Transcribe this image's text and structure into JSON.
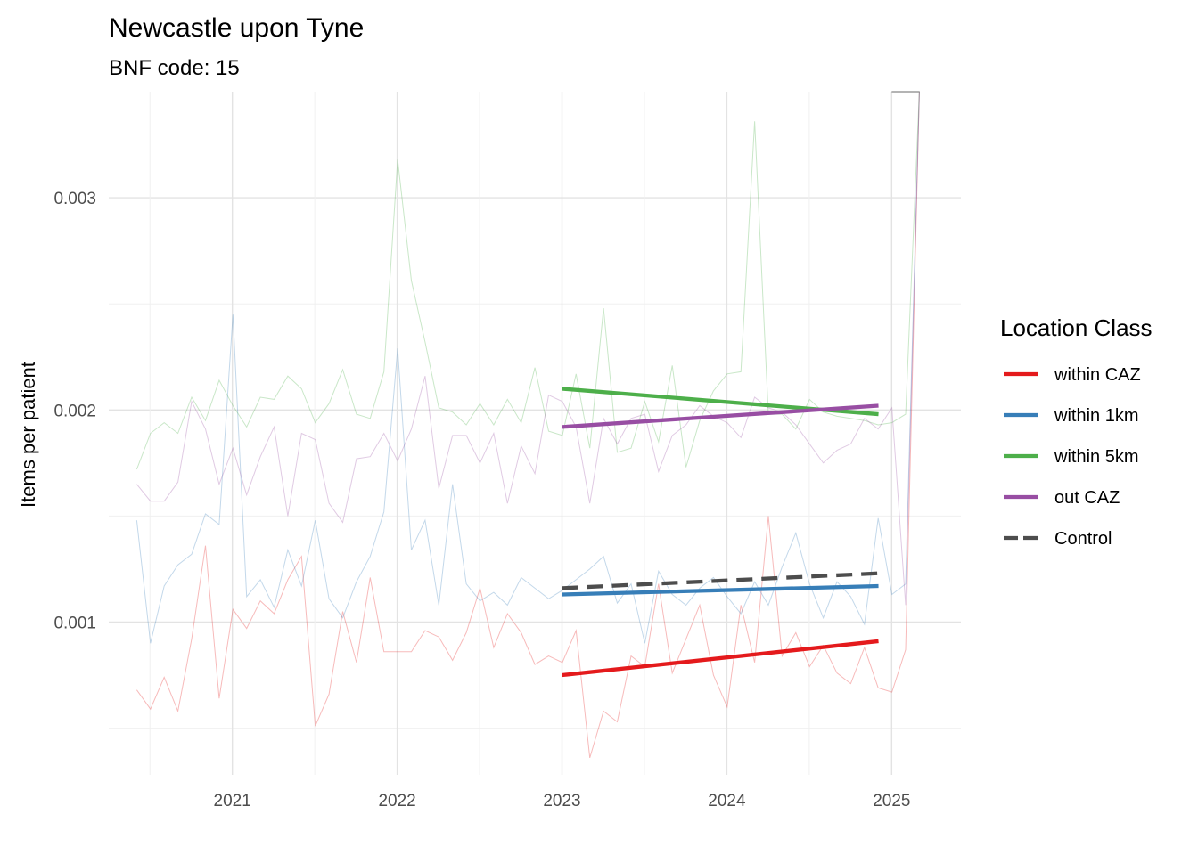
{
  "chart_data": {
    "type": "line",
    "title": "Newcastle upon Tyne",
    "subtitle": "BNF code: 15",
    "xlabel": "",
    "ylabel": "Items per patient",
    "x_ticks": [
      "2021",
      "2022",
      "2023",
      "2024",
      "2025"
    ],
    "x_tick_values": [
      2021,
      2022,
      2023,
      2024,
      2025
    ],
    "y_ticks": [
      "0.001",
      "0.002",
      "0.003"
    ],
    "y_tick_values": [
      0.001,
      0.002,
      0.003
    ],
    "xlim": [
      2020.25,
      2025.42
    ],
    "ylim": [
      0.00028,
      0.0035
    ],
    "grid": true,
    "legend": {
      "title": "Location Class",
      "position": "right",
      "entries": [
        {
          "label": "within CAZ",
          "color": "#e41a1c",
          "dashed": false
        },
        {
          "label": "within 1km",
          "color": "#377eb8",
          "dashed": false
        },
        {
          "label": "within 5km",
          "color": "#4daf4a",
          "dashed": false
        },
        {
          "label": "out CAZ",
          "color": "#984ea3",
          "dashed": false
        },
        {
          "label": "Control",
          "color": "#4d4d4d",
          "dashed": true
        }
      ]
    },
    "trend_lines": [
      {
        "name": "within CAZ",
        "color": "#e41a1c",
        "dashed": false,
        "x": [
          2023.0,
          2024.92
        ],
        "y": [
          0.00075,
          0.00091
        ]
      },
      {
        "name": "within 1km",
        "color": "#377eb8",
        "dashed": false,
        "x": [
          2023.0,
          2024.92
        ],
        "y": [
          0.00113,
          0.00117
        ]
      },
      {
        "name": "within 5km",
        "color": "#4daf4a",
        "dashed": false,
        "x": [
          2023.0,
          2024.92
        ],
        "y": [
          0.0021,
          0.00198
        ]
      },
      {
        "name": "out CAZ",
        "color": "#984ea3",
        "dashed": false,
        "x": [
          2023.0,
          2024.92
        ],
        "y": [
          0.00192,
          0.00202
        ]
      },
      {
        "name": "Control",
        "color": "#4d4d4d",
        "dashed": true,
        "x": [
          2023.0,
          2024.92
        ],
        "y": [
          0.00116,
          0.00123
        ]
      }
    ],
    "monthly_start": 2020.42,
    "monthly_step": 0.0833,
    "monthly_series": [
      {
        "name": "within CAZ",
        "color": "#e41a1c",
        "values": [
          0.00068,
          0.00059,
          0.00074,
          0.00058,
          0.00092,
          0.00136,
          0.00064,
          0.00106,
          0.00097,
          0.0011,
          0.00104,
          0.0012,
          0.00131,
          0.00051,
          0.00066,
          0.00105,
          0.00081,
          0.00121,
          0.00086,
          0.00086,
          0.00086,
          0.00096,
          0.00093,
          0.00082,
          0.00095,
          0.00116,
          0.00088,
          0.00104,
          0.00095,
          0.0008,
          0.00084,
          0.00081,
          0.00096,
          0.00036,
          0.00058,
          0.00053,
          0.00084,
          0.00079,
          0.00118,
          0.00076,
          0.00092,
          0.00108,
          0.00075,
          0.0006,
          0.00108,
          0.00081,
          0.0015,
          0.00084,
          0.00095,
          0.00079,
          0.00089,
          0.00076,
          0.00071,
          0.00088,
          0.00069,
          0.00067,
          0.00087,
          0.0035
        ]
      },
      {
        "name": "within 1km",
        "color": "#377eb8",
        "values": [
          0.00148,
          0.0009,
          0.00117,
          0.00127,
          0.00132,
          0.00151,
          0.00146,
          0.00245,
          0.00112,
          0.0012,
          0.00107,
          0.00134,
          0.00117,
          0.00148,
          0.00111,
          0.00102,
          0.00119,
          0.00131,
          0.00152,
          0.00229,
          0.00134,
          0.00148,
          0.00108,
          0.00165,
          0.00118,
          0.0011,
          0.00114,
          0.00108,
          0.00121,
          0.00116,
          0.00111,
          0.00115,
          0.0012,
          0.00125,
          0.00131,
          0.00109,
          0.00118,
          0.0009,
          0.00124,
          0.00113,
          0.00108,
          0.00116,
          0.00121,
          0.00112,
          0.00104,
          0.00119,
          0.00108,
          0.00126,
          0.00142,
          0.00118,
          0.00102,
          0.00119,
          0.00112,
          0.00099,
          0.00149,
          0.00113,
          0.00118,
          0.0035
        ]
      },
      {
        "name": "within 5km",
        "color": "#4daf4a",
        "values": [
          0.00172,
          0.00189,
          0.00194,
          0.00189,
          0.00206,
          0.00195,
          0.00214,
          0.00202,
          0.00192,
          0.00206,
          0.00205,
          0.00216,
          0.0021,
          0.00194,
          0.00203,
          0.00219,
          0.00198,
          0.00196,
          0.00218,
          0.00318,
          0.00261,
          0.00232,
          0.00201,
          0.00199,
          0.00193,
          0.00203,
          0.00193,
          0.00205,
          0.00194,
          0.0022,
          0.0019,
          0.00188,
          0.00217,
          0.00182,
          0.00248,
          0.0018,
          0.00182,
          0.00204,
          0.00185,
          0.00221,
          0.00173,
          0.00195,
          0.00209,
          0.00217,
          0.00218,
          0.00336,
          0.00198,
          0.00198,
          0.00191,
          0.00205,
          0.00199,
          0.00197,
          0.00196,
          0.00195,
          0.00193,
          0.00194,
          0.00198,
          0.0035
        ]
      },
      {
        "name": "out CAZ",
        "color": "#984ea3",
        "values": [
          0.00165,
          0.00157,
          0.00157,
          0.00166,
          0.00204,
          0.00191,
          0.00165,
          0.00182,
          0.0016,
          0.00178,
          0.00192,
          0.0015,
          0.00189,
          0.00186,
          0.00156,
          0.00147,
          0.00177,
          0.00178,
          0.00189,
          0.00176,
          0.00191,
          0.00216,
          0.00163,
          0.00188,
          0.00188,
          0.00175,
          0.00189,
          0.00156,
          0.00183,
          0.0017,
          0.00207,
          0.00204,
          0.00192,
          0.00156,
          0.00196,
          0.00184,
          0.00196,
          0.00198,
          0.00171,
          0.00188,
          0.00193,
          0.00202,
          0.00197,
          0.00194,
          0.00187,
          0.00206,
          0.00201,
          0.00199,
          0.00193,
          0.00184,
          0.00175,
          0.00181,
          0.00184,
          0.00196,
          0.00191,
          0.00201,
          0.00108,
          0.0035
        ]
      }
    ]
  }
}
